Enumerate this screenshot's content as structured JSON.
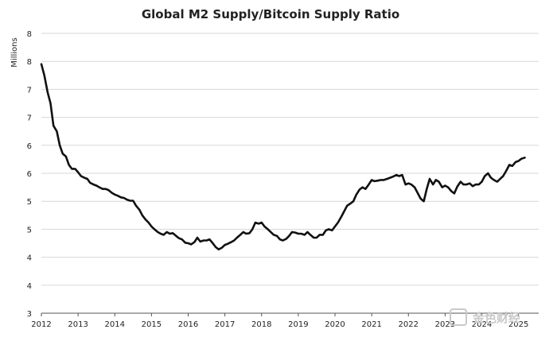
{
  "chart_data": {
    "type": "line",
    "title": "Global M2 Supply/Bitcoin Supply Ratio",
    "xlabel": "",
    "ylabel": "Millions",
    "x_ticks": [
      "2012",
      "2013",
      "2014",
      "2015",
      "2016",
      "2017",
      "2018",
      "2019",
      "2020",
      "2021",
      "2022",
      "2023",
      "2024",
      "2025"
    ],
    "y_ticks": [
      "3",
      "4",
      "4",
      "5",
      "5",
      "6",
      "6",
      "7",
      "7",
      "8",
      "8"
    ],
    "xlim": [
      2012,
      2025.55
    ],
    "ylim": [
      3,
      8
    ],
    "grid": true,
    "series": [
      {
        "name": "Global M2 Supply/Bitcoin Supply Ratio",
        "color": "#111111",
        "points": [
          [
            2012.0,
            7.45
          ],
          [
            2012.08,
            7.25
          ],
          [
            2012.17,
            6.95
          ],
          [
            2012.25,
            6.75
          ],
          [
            2012.33,
            6.35
          ],
          [
            2012.42,
            6.25
          ],
          [
            2012.5,
            6.0
          ],
          [
            2012.58,
            5.85
          ],
          [
            2012.67,
            5.8
          ],
          [
            2012.75,
            5.65
          ],
          [
            2012.83,
            5.58
          ],
          [
            2012.92,
            5.58
          ],
          [
            2013.0,
            5.52
          ],
          [
            2013.08,
            5.45
          ],
          [
            2013.17,
            5.42
          ],
          [
            2013.25,
            5.4
          ],
          [
            2013.33,
            5.33
          ],
          [
            2013.42,
            5.3
          ],
          [
            2013.5,
            5.28
          ],
          [
            2013.58,
            5.25
          ],
          [
            2013.67,
            5.22
          ],
          [
            2013.75,
            5.22
          ],
          [
            2013.83,
            5.2
          ],
          [
            2013.92,
            5.15
          ],
          [
            2014.0,
            5.12
          ],
          [
            2014.08,
            5.1
          ],
          [
            2014.17,
            5.07
          ],
          [
            2014.25,
            5.06
          ],
          [
            2014.33,
            5.03
          ],
          [
            2014.42,
            5.01
          ],
          [
            2014.5,
            5.01
          ],
          [
            2014.58,
            4.92
          ],
          [
            2014.67,
            4.85
          ],
          [
            2014.75,
            4.75
          ],
          [
            2014.83,
            4.68
          ],
          [
            2014.92,
            4.62
          ],
          [
            2015.0,
            4.55
          ],
          [
            2015.08,
            4.5
          ],
          [
            2015.17,
            4.45
          ],
          [
            2015.25,
            4.42
          ],
          [
            2015.33,
            4.4
          ],
          [
            2015.42,
            4.45
          ],
          [
            2015.5,
            4.42
          ],
          [
            2015.58,
            4.43
          ],
          [
            2015.67,
            4.38
          ],
          [
            2015.75,
            4.34
          ],
          [
            2015.83,
            4.32
          ],
          [
            2015.92,
            4.26
          ],
          [
            2016.0,
            4.25
          ],
          [
            2016.08,
            4.23
          ],
          [
            2016.17,
            4.27
          ],
          [
            2016.25,
            4.35
          ],
          [
            2016.33,
            4.28
          ],
          [
            2016.42,
            4.3
          ],
          [
            2016.5,
            4.3
          ],
          [
            2016.58,
            4.32
          ],
          [
            2016.67,
            4.25
          ],
          [
            2016.75,
            4.18
          ],
          [
            2016.83,
            4.14
          ],
          [
            2016.92,
            4.17
          ],
          [
            2017.0,
            4.22
          ],
          [
            2017.08,
            4.24
          ],
          [
            2017.17,
            4.27
          ],
          [
            2017.25,
            4.3
          ],
          [
            2017.33,
            4.35
          ],
          [
            2017.42,
            4.4
          ],
          [
            2017.5,
            4.45
          ],
          [
            2017.58,
            4.42
          ],
          [
            2017.67,
            4.43
          ],
          [
            2017.75,
            4.5
          ],
          [
            2017.83,
            4.62
          ],
          [
            2017.92,
            4.6
          ],
          [
            2018.0,
            4.62
          ],
          [
            2018.08,
            4.55
          ],
          [
            2018.17,
            4.5
          ],
          [
            2018.25,
            4.45
          ],
          [
            2018.33,
            4.4
          ],
          [
            2018.42,
            4.38
          ],
          [
            2018.5,
            4.32
          ],
          [
            2018.58,
            4.3
          ],
          [
            2018.67,
            4.33
          ],
          [
            2018.75,
            4.38
          ],
          [
            2018.83,
            4.45
          ],
          [
            2018.92,
            4.44
          ],
          [
            2019.0,
            4.42
          ],
          [
            2019.08,
            4.42
          ],
          [
            2019.17,
            4.4
          ],
          [
            2019.25,
            4.45
          ],
          [
            2019.33,
            4.4
          ],
          [
            2019.42,
            4.35
          ],
          [
            2019.5,
            4.35
          ],
          [
            2019.58,
            4.4
          ],
          [
            2019.67,
            4.4
          ],
          [
            2019.75,
            4.48
          ],
          [
            2019.83,
            4.5
          ],
          [
            2019.92,
            4.48
          ],
          [
            2020.0,
            4.55
          ],
          [
            2020.08,
            4.62
          ],
          [
            2020.17,
            4.72
          ],
          [
            2020.25,
            4.82
          ],
          [
            2020.33,
            4.92
          ],
          [
            2020.42,
            4.96
          ],
          [
            2020.5,
            5.0
          ],
          [
            2020.58,
            5.12
          ],
          [
            2020.67,
            5.21
          ],
          [
            2020.75,
            5.25
          ],
          [
            2020.83,
            5.22
          ],
          [
            2020.92,
            5.3
          ],
          [
            2021.0,
            5.38
          ],
          [
            2021.08,
            5.36
          ],
          [
            2021.17,
            5.37
          ],
          [
            2021.25,
            5.38
          ],
          [
            2021.33,
            5.38
          ],
          [
            2021.42,
            5.4
          ],
          [
            2021.5,
            5.42
          ],
          [
            2021.58,
            5.44
          ],
          [
            2021.67,
            5.47
          ],
          [
            2021.75,
            5.45
          ],
          [
            2021.83,
            5.47
          ],
          [
            2021.92,
            5.3
          ],
          [
            2022.0,
            5.32
          ],
          [
            2022.08,
            5.3
          ],
          [
            2022.17,
            5.25
          ],
          [
            2022.25,
            5.15
          ],
          [
            2022.33,
            5.05
          ],
          [
            2022.42,
            5.0
          ],
          [
            2022.5,
            5.22
          ],
          [
            2022.58,
            5.4
          ],
          [
            2022.67,
            5.3
          ],
          [
            2022.75,
            5.38
          ],
          [
            2022.83,
            5.35
          ],
          [
            2022.92,
            5.25
          ],
          [
            2023.0,
            5.28
          ],
          [
            2023.08,
            5.25
          ],
          [
            2023.17,
            5.18
          ],
          [
            2023.25,
            5.14
          ],
          [
            2023.33,
            5.26
          ],
          [
            2023.42,
            5.35
          ],
          [
            2023.5,
            5.3
          ],
          [
            2023.58,
            5.3
          ],
          [
            2023.67,
            5.32
          ],
          [
            2023.75,
            5.27
          ],
          [
            2023.83,
            5.3
          ],
          [
            2023.92,
            5.3
          ],
          [
            2024.0,
            5.35
          ],
          [
            2024.08,
            5.45
          ],
          [
            2024.17,
            5.5
          ],
          [
            2024.25,
            5.42
          ],
          [
            2024.33,
            5.38
          ],
          [
            2024.42,
            5.35
          ],
          [
            2024.5,
            5.4
          ],
          [
            2024.58,
            5.45
          ],
          [
            2024.67,
            5.55
          ],
          [
            2024.75,
            5.65
          ],
          [
            2024.83,
            5.63
          ],
          [
            2024.92,
            5.7
          ],
          [
            2025.0,
            5.72
          ],
          [
            2025.08,
            5.76
          ],
          [
            2025.17,
            5.78
          ]
        ]
      }
    ]
  },
  "watermark": {
    "text": "金色财经",
    "color": "#c9c9c9"
  }
}
